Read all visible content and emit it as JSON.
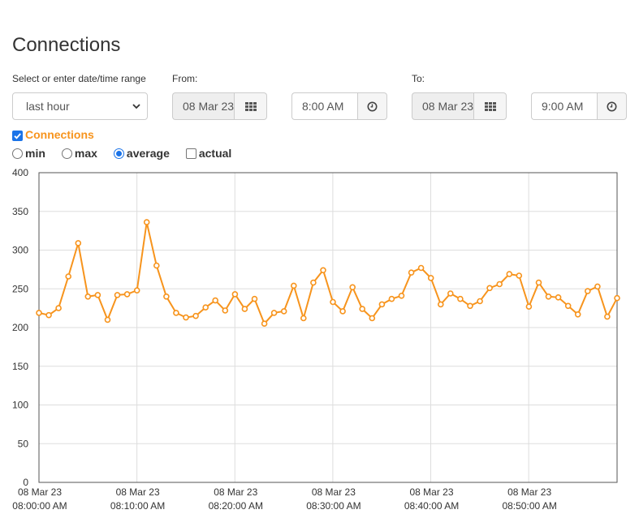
{
  "page": {
    "title": "Connections"
  },
  "range": {
    "label": "Select or enter date/time range",
    "value": "last hour"
  },
  "from": {
    "label": "From:",
    "date": "08 Mar 23",
    "time": "8:00 AM"
  },
  "to": {
    "label": "To:",
    "date": "08 Mar 23",
    "time": "9:00 AM"
  },
  "series_toggle": {
    "label": "Connections"
  },
  "modes": {
    "min": "min",
    "max": "max",
    "average": "average",
    "actual": "actual"
  },
  "icons": {
    "calendar": "calendar-grid-icon",
    "clock": "clock-icon",
    "caret": "chevron-down-icon"
  },
  "colors": {
    "series": "#f7941d",
    "grid": "#dddddd",
    "axis": "#555555"
  },
  "chart_data": {
    "type": "line",
    "title": "",
    "xlabel": "",
    "ylabel": "",
    "ylim": [
      0,
      400
    ],
    "yticks": [
      0,
      50,
      100,
      150,
      200,
      250,
      300,
      350,
      400
    ],
    "x_ticks": [
      {
        "date": "08 Mar 23",
        "time": "08:00:00 AM"
      },
      {
        "date": "08 Mar 23",
        "time": "08:10:00 AM"
      },
      {
        "date": "08 Mar 23",
        "time": "08:20:00 AM"
      },
      {
        "date": "08 Mar 23",
        "time": "08:30:00 AM"
      },
      {
        "date": "08 Mar 23",
        "time": "08:40:00 AM"
      },
      {
        "date": "08 Mar 23",
        "time": "08:50:00 AM"
      }
    ],
    "grid": true,
    "legend": "none",
    "series": [
      {
        "name": "Connections",
        "values": [
          219,
          216,
          225,
          266,
          309,
          240,
          242,
          210,
          242,
          243,
          248,
          336,
          280,
          240,
          219,
          213,
          215,
          226,
          235,
          222,
          243,
          224,
          237,
          205,
          219,
          221,
          254,
          212,
          258,
          274,
          233,
          221,
          252,
          224,
          212,
          230,
          237,
          241,
          271,
          277,
          264,
          230,
          244,
          237,
          228,
          234,
          251,
          256,
          269,
          267,
          227,
          258,
          240,
          239,
          228,
          217,
          247,
          253,
          214,
          238
        ]
      }
    ]
  }
}
